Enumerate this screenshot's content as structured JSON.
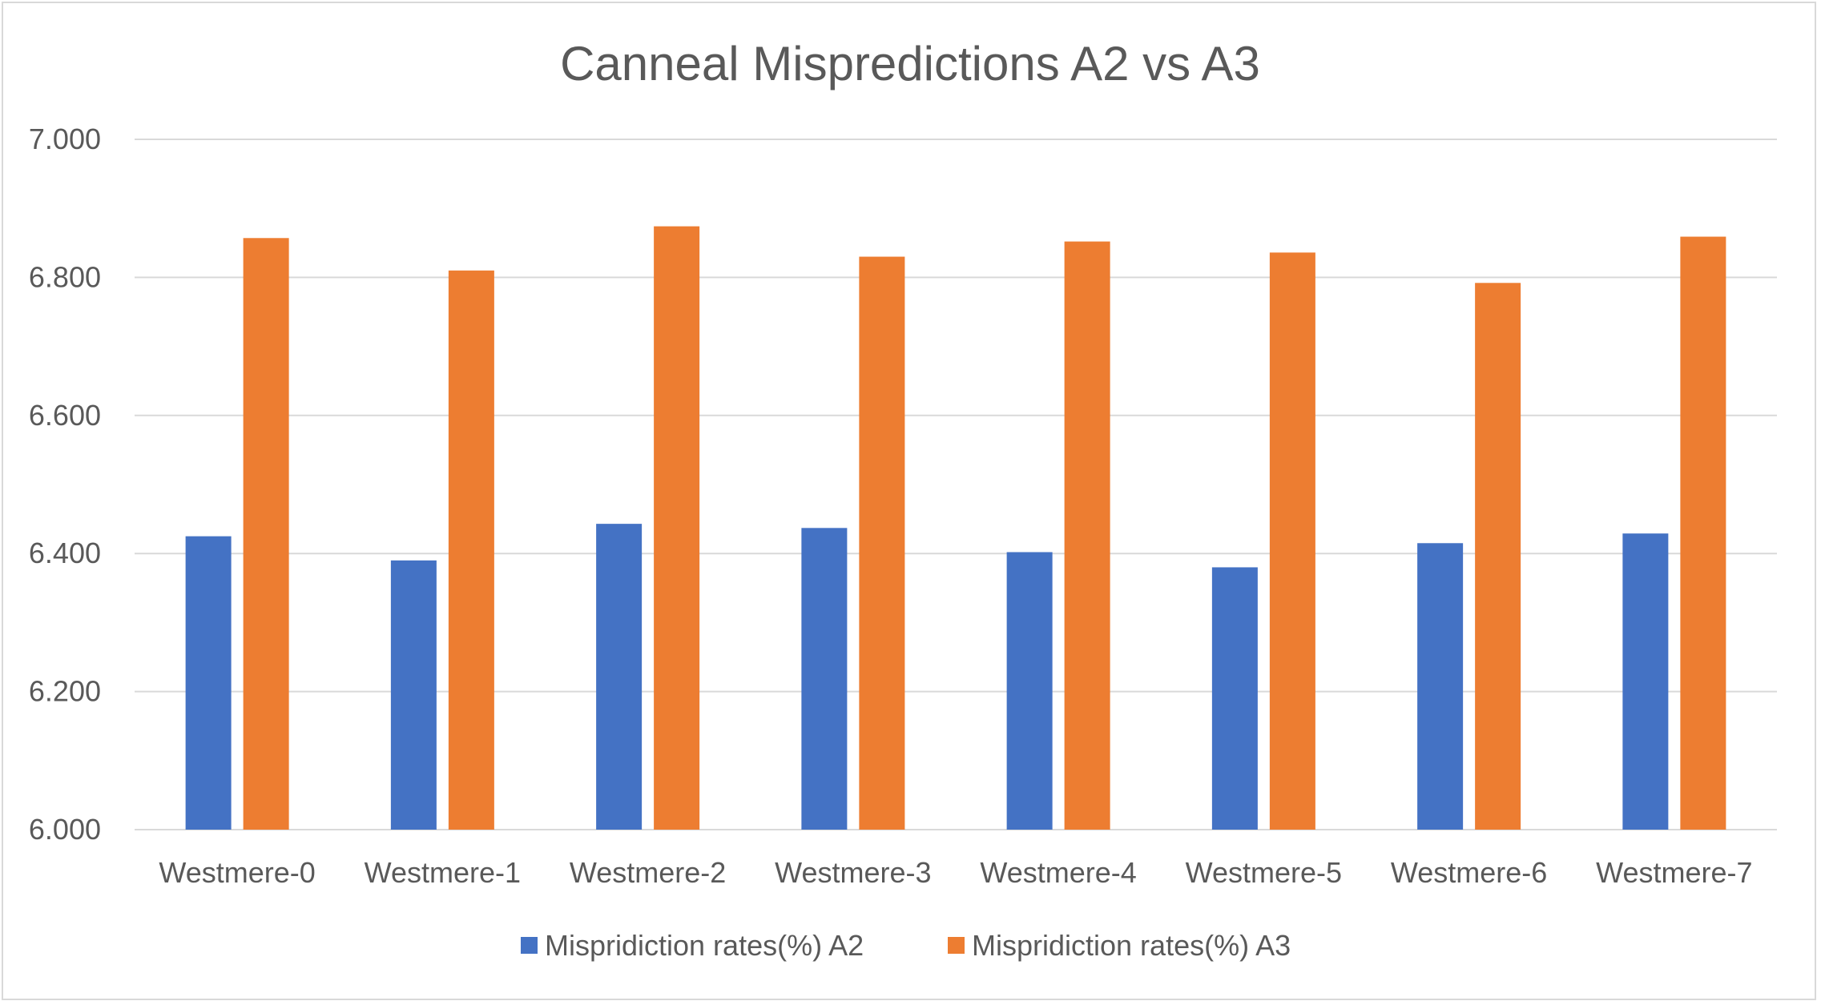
{
  "chart_data": {
    "type": "bar",
    "title": "Canneal Mispredictions A2 vs A3",
    "xlabel": "",
    "ylabel": "",
    "categories": [
      "Westmere-0",
      "Westmere-1",
      "Westmere-2",
      "Westmere-3",
      "Westmere-4",
      "Westmere-5",
      "Westmere-6",
      "Westmere-7"
    ],
    "series": [
      {
        "name": "Mispridiction rates(%) A2",
        "color": "#4472c4",
        "values": [
          6.425,
          6.39,
          6.443,
          6.437,
          6.402,
          6.38,
          6.415,
          6.429
        ]
      },
      {
        "name": "Mispridiction rates(%) A3",
        "color": "#ed7d31",
        "values": [
          6.857,
          6.81,
          6.874,
          6.83,
          6.852,
          6.836,
          6.792,
          6.859
        ]
      }
    ],
    "ylim": [
      6.0,
      7.0
    ],
    "yticks": [
      "6.000",
      "6.200",
      "6.400",
      "6.600",
      "6.800",
      "7.000"
    ],
    "grid": true,
    "legend_position": "bottom"
  }
}
